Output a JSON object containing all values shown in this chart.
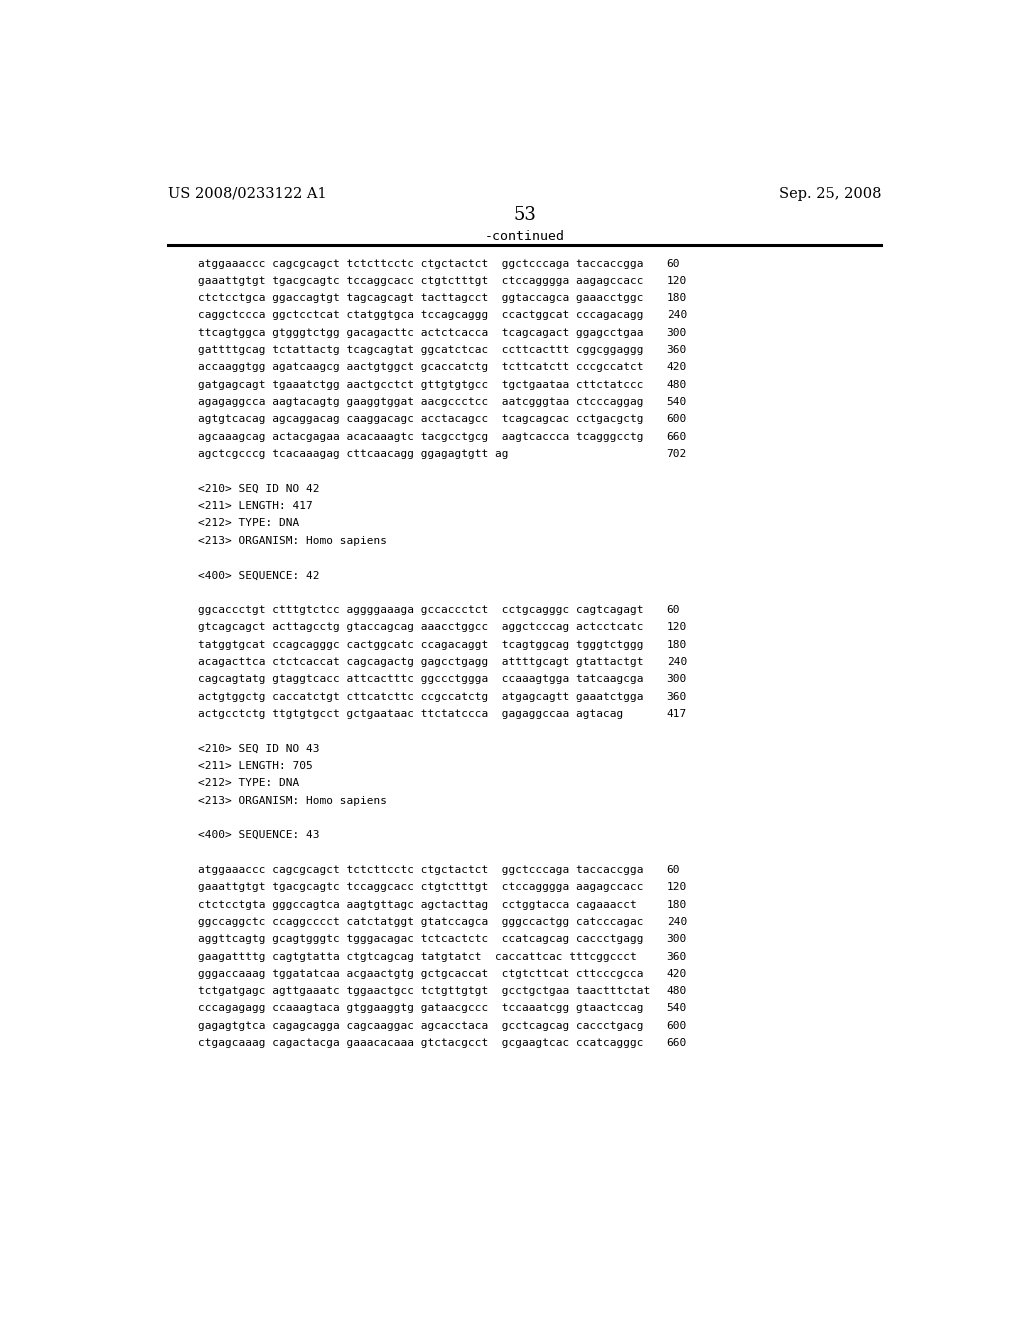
{
  "header_left": "US 2008/0233122 A1",
  "header_right": "Sep. 25, 2008",
  "page_number": "53",
  "continued_label": "-continued",
  "background_color": "#ffffff",
  "text_color": "#000000",
  "font_size_header": 10.5,
  "font_size_body": 8.0,
  "font_size_page": 13.0,
  "font_size_continued": 9.5,
  "content_lines": [
    {
      "text": "atggaaaccc cagcgcagct tctcttcctc ctgctactct  ggctcccaga taccaccgga",
      "num": "60"
    },
    {
      "text": "gaaattgtgt tgacgcagtc tccaggcacc ctgtctttgt  ctccagggga aagagccacc",
      "num": "120"
    },
    {
      "text": "ctctcctgca ggaccagtgt tagcagcagt tacttagcct  ggtaccagca gaaacctggc",
      "num": "180"
    },
    {
      "text": "caggctccca ggctcctcat ctatggtgca tccagcaggg  ccactggcat cccagacagg",
      "num": "240"
    },
    {
      "text": "ttcagtggca gtgggtctgg gacagacttc actctcacca  tcagcagact ggagcctgaa",
      "num": "300"
    },
    {
      "text": "gattttgcag tctattactg tcagcagtat ggcatctcac  ccttcacttt cggcggaggg",
      "num": "360"
    },
    {
      "text": "accaaggtgg agatcaagcg aactgtggct gcaccatctg  tcttcatctt cccgccatct",
      "num": "420"
    },
    {
      "text": "gatgagcagt tgaaatctgg aactgcctct gttgtgtgcc  tgctgaataa cttctatccc",
      "num": "480"
    },
    {
      "text": "agagaggcca aagtacagtg gaaggtggat aacgccctcc  aatcgggtaa ctcccaggag",
      "num": "540"
    },
    {
      "text": "agtgtcacag agcaggacag caaggacagc acctacagcc  tcagcagcac cctgacgctg",
      "num": "600"
    },
    {
      "text": "agcaaagcag actacgagaa acacaaagtc tacgcctgcg  aagtcaccca tcagggcctg",
      "num": "660"
    },
    {
      "text": "agctcgcccg tcacaaagag cttcaacagg ggagagtgtt ag",
      "num": "702"
    },
    {
      "text": "",
      "num": ""
    },
    {
      "text": "<210> SEQ ID NO 42",
      "num": ""
    },
    {
      "text": "<211> LENGTH: 417",
      "num": ""
    },
    {
      "text": "<212> TYPE: DNA",
      "num": ""
    },
    {
      "text": "<213> ORGANISM: Homo sapiens",
      "num": ""
    },
    {
      "text": "",
      "num": ""
    },
    {
      "text": "<400> SEQUENCE: 42",
      "num": ""
    },
    {
      "text": "",
      "num": ""
    },
    {
      "text": "ggcaccctgt ctttgtctcc aggggaaaga gccaccctct  cctgcagggc cagtcagagt",
      "num": "60"
    },
    {
      "text": "gtcagcagct acttagcctg gtaccagcag aaacctggcc  aggctcccag actcctcatc",
      "num": "120"
    },
    {
      "text": "tatggtgcat ccagcagggc cactggcatc ccagacaggt  tcagtggcag tgggtctggg",
      "num": "180"
    },
    {
      "text": "acagacttca ctctcaccat cagcagactg gagcctgagg  attttgcagt gtattactgt",
      "num": "240"
    },
    {
      "text": "cagcagtatg gtaggtcacc attcactttc ggccctggga  ccaaagtgga tatcaagcga",
      "num": "300"
    },
    {
      "text": "actgtggctg caccatctgt cttcatcttc ccgccatctg  atgagcagtt gaaatctgga",
      "num": "360"
    },
    {
      "text": "actgcctctg ttgtgtgcct gctgaataac ttctatccca  gagaggccaa agtacag",
      "num": "417"
    },
    {
      "text": "",
      "num": ""
    },
    {
      "text": "<210> SEQ ID NO 43",
      "num": ""
    },
    {
      "text": "<211> LENGTH: 705",
      "num": ""
    },
    {
      "text": "<212> TYPE: DNA",
      "num": ""
    },
    {
      "text": "<213> ORGANISM: Homo sapiens",
      "num": ""
    },
    {
      "text": "",
      "num": ""
    },
    {
      "text": "<400> SEQUENCE: 43",
      "num": ""
    },
    {
      "text": "",
      "num": ""
    },
    {
      "text": "atggaaaccc cagcgcagct tctcttcctc ctgctactct  ggctcccaga taccaccgga",
      "num": "60"
    },
    {
      "text": "gaaattgtgt tgacgcagtc tccaggcacc ctgtctttgt  ctccagggga aagagccacc",
      "num": "120"
    },
    {
      "text": "ctctcctgta gggccagtca aagtgttagc agctacttag  cctggtacca cagaaacct",
      "num": "180"
    },
    {
      "text": "ggccaggctc ccaggcccct catctatggt gtatccagca  gggccactgg catcccagac",
      "num": "240"
    },
    {
      "text": "aggttcagtg gcagtgggtc tgggacagac tctcactctc  ccatcagcag caccctgagg",
      "num": "300"
    },
    {
      "text": "gaagattttg cagtgtatta ctgtcagcag tatgtatct  caccattcac tttcggccct",
      "num": "360"
    },
    {
      "text": "gggaccaaag tggatatcaa acgaactgtg gctgcaccat  ctgtcttcat cttcccgcca",
      "num": "420"
    },
    {
      "text": "tctgatgagc agttgaaatc tggaactgcc tctgttgtgt  gcctgctgaa taactttctat",
      "num": "480"
    },
    {
      "text": "cccagagagg ccaaagtaca gtggaaggtg gataacgccc  tccaaatcgg gtaactccag",
      "num": "540"
    },
    {
      "text": "gagagtgtca cagagcagga cagcaaggac agcacctaca  gcctcagcag caccctgacg",
      "num": "600"
    },
    {
      "text": "ctgagcaaag cagactacga gaaacacaaa gtctacgcct  gcgaagtcac ccatcagggc",
      "num": "660"
    }
  ]
}
